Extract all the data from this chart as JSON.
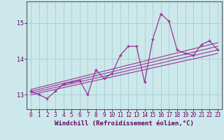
{
  "xlabel": "Windchill (Refroidissement éolien,°C)",
  "x_data": [
    0,
    1,
    2,
    3,
    4,
    5,
    6,
    7,
    8,
    9,
    10,
    11,
    12,
    13,
    14,
    15,
    16,
    17,
    18,
    19,
    20,
    21,
    22,
    23
  ],
  "y_data": [
    13.1,
    13.0,
    12.9,
    13.1,
    13.3,
    13.35,
    13.4,
    13.0,
    13.7,
    13.45,
    13.6,
    14.1,
    14.35,
    14.35,
    13.35,
    14.55,
    15.25,
    15.05,
    14.25,
    14.15,
    14.1,
    14.4,
    14.5,
    14.25
  ],
  "reg_lines": [
    {
      "x": [
        0,
        23
      ],
      "y": [
        13.0,
        14.15
      ]
    },
    {
      "x": [
        0,
        23
      ],
      "y": [
        13.05,
        14.25
      ]
    },
    {
      "x": [
        0,
        23
      ],
      "y": [
        13.1,
        14.35
      ]
    },
    {
      "x": [
        0,
        23
      ],
      "y": [
        13.15,
        14.45
      ]
    }
  ],
  "line_color": "#993399",
  "bg_color": "#cce8ea",
  "grid_color": "#99cccc",
  "ylim": [
    12.6,
    15.6
  ],
  "xlim": [
    -0.5,
    23.5
  ],
  "yticks": [
    13,
    14,
    15
  ],
  "xticks": [
    0,
    1,
    2,
    3,
    4,
    5,
    6,
    7,
    8,
    9,
    10,
    11,
    12,
    13,
    14,
    15,
    16,
    17,
    18,
    19,
    20,
    21,
    22,
    23
  ],
  "tick_fontsize": 5.5,
  "xlabel_fontsize": 6.5
}
